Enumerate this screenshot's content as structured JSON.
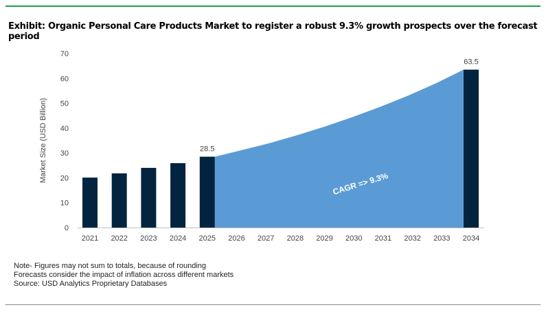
{
  "title": "Exhibit: Organic Personal Care Products Market to register a robust 9.3% growth prospects over the forecast period",
  "notes": [
    "Note- Figures may not sum to totals, because of rounding",
    "Forecasts consider the impact of inflation across different markets",
    "Source: USD Analytics Proprietary Databases"
  ],
  "colors": {
    "bar": "#03243f",
    "area": "#5b9bd5",
    "rule": "#1aa34a"
  },
  "chart_data": {
    "type": "bar",
    "title": "",
    "xlabel": "",
    "ylabel": "Market Size (USD Billion)",
    "ylim": [
      0,
      70
    ],
    "yticks": [
      0,
      10,
      20,
      30,
      40,
      50,
      60,
      70
    ],
    "grid": false,
    "categories": [
      "2021",
      "2022",
      "2023",
      "2024",
      "2025",
      "2026",
      "2027",
      "2028",
      "2029",
      "2030",
      "2031",
      "2032",
      "2033",
      "2034"
    ],
    "bars": [
      20.1,
      21.8,
      24.0,
      25.9,
      28.5,
      null,
      null,
      null,
      null,
      null,
      null,
      null,
      null,
      63.5
    ],
    "data_labels": {
      "2025": "28.5",
      "2034": "63.5"
    },
    "area": {
      "from": "2025",
      "to": "2034",
      "values": [
        28.5,
        31.2,
        34.0,
        37.2,
        40.7,
        44.5,
        48.6,
        53.1,
        58.0,
        63.5
      ]
    },
    "annotation": "CAGR => 9.3%"
  }
}
